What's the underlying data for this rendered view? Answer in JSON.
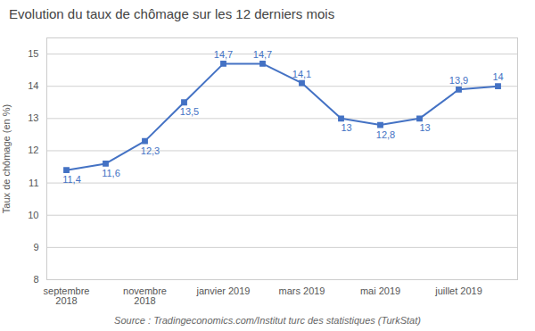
{
  "chart_data": {
    "type": "line",
    "title": "Evolution du taux de chômage sur les 12 derniers mois",
    "ylabel": "Taux de chômage (en %)",
    "source": "Source : Tradingeconomics.com/Institut turc des statistiques (TurkStat)",
    "categories": [
      "septembre\n2018",
      null,
      "novembre\n2018",
      null,
      "janvier 2019",
      null,
      "mars 2019",
      null,
      "mai 2019",
      null,
      "juillet 2019",
      null
    ],
    "values": [
      11.4,
      11.6,
      12.3,
      13.5,
      14.7,
      14.7,
      14.1,
      13.0,
      12.8,
      13.0,
      13.9,
      14.0
    ],
    "value_labels": [
      "11,4",
      "11,6",
      "12,3",
      "13,5",
      "14,7",
      "14,7",
      "14,1",
      "13",
      "12,8",
      "13",
      "13,9",
      "14"
    ],
    "data_labels": true,
    "color": "#4472C4",
    "marker": "square",
    "ylim": [
      8,
      15.5
    ],
    "yticks": [
      8,
      9,
      10,
      11,
      12,
      13,
      14,
      15
    ],
    "grid": true
  }
}
